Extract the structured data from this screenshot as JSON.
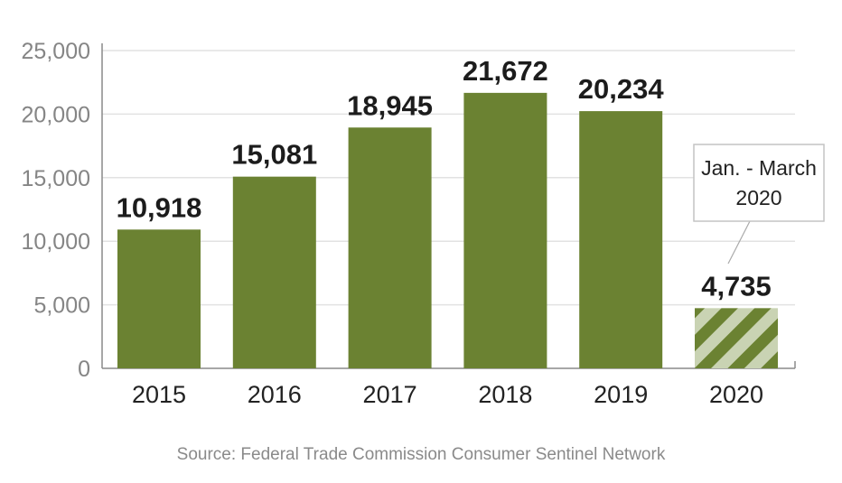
{
  "chart_data": {
    "type": "bar",
    "categories": [
      "2015",
      "2016",
      "2017",
      "2018",
      "2019",
      "2020"
    ],
    "values": [
      10918,
      15081,
      18945,
      21672,
      20234,
      4735
    ],
    "value_labels": [
      "10,918",
      "15,081",
      "18,945",
      "21,672",
      "20,234",
      "4,735"
    ],
    "ylim": [
      0,
      25000
    ],
    "yticks": [
      0,
      5000,
      10000,
      15000,
      20000,
      25000
    ],
    "ytick_labels": [
      "0",
      "5,000",
      "10,000",
      "15,000",
      "20,000",
      "25,000"
    ],
    "grid": true,
    "partial_category": "2020",
    "annotation": {
      "line1": "Jan. - March",
      "line2": "2020"
    },
    "source": "Source: Federal Trade Commission Consumer Sentinel Network",
    "colors": {
      "bar": "#6b8232",
      "stripe_light": "#c9d3b3",
      "grid": "#e2e2e2",
      "axis": "#8a8a8a"
    }
  }
}
